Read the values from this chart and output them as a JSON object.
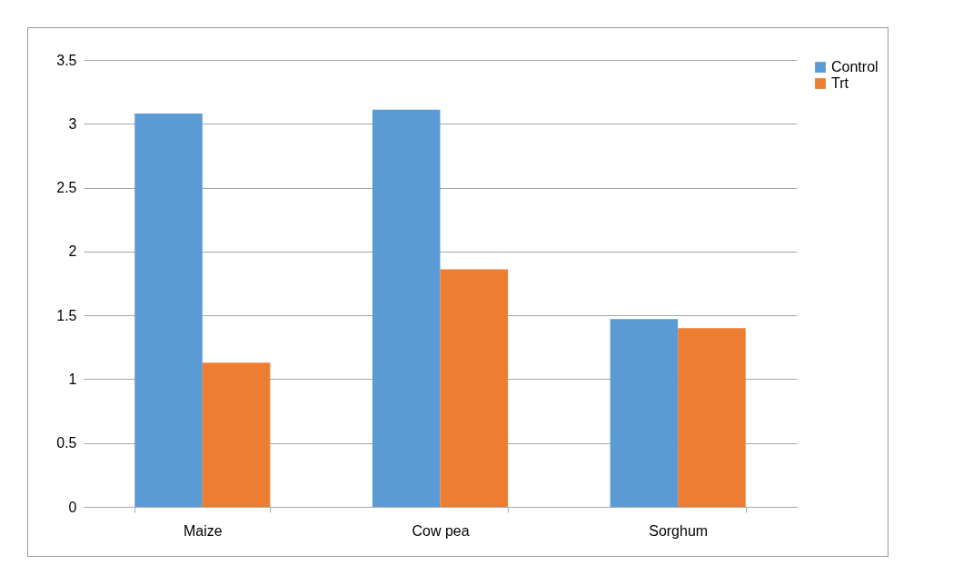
{
  "chart_data": {
    "type": "bar",
    "categories": [
      "Maize",
      "Cow pea",
      "Sorghum"
    ],
    "series": [
      {
        "name": "Control",
        "color": "#5b9bd5",
        "values": [
          3.08,
          3.11,
          1.47
        ]
      },
      {
        "name": "Trt",
        "color": "#ed7d31",
        "values": [
          1.13,
          1.86,
          1.4
        ]
      }
    ],
    "ylim": [
      0,
      3.5
    ],
    "yticks": [
      0,
      0.5,
      1,
      1.5,
      2,
      2.5,
      3,
      3.5
    ],
    "grid": "y",
    "legend": "right"
  }
}
